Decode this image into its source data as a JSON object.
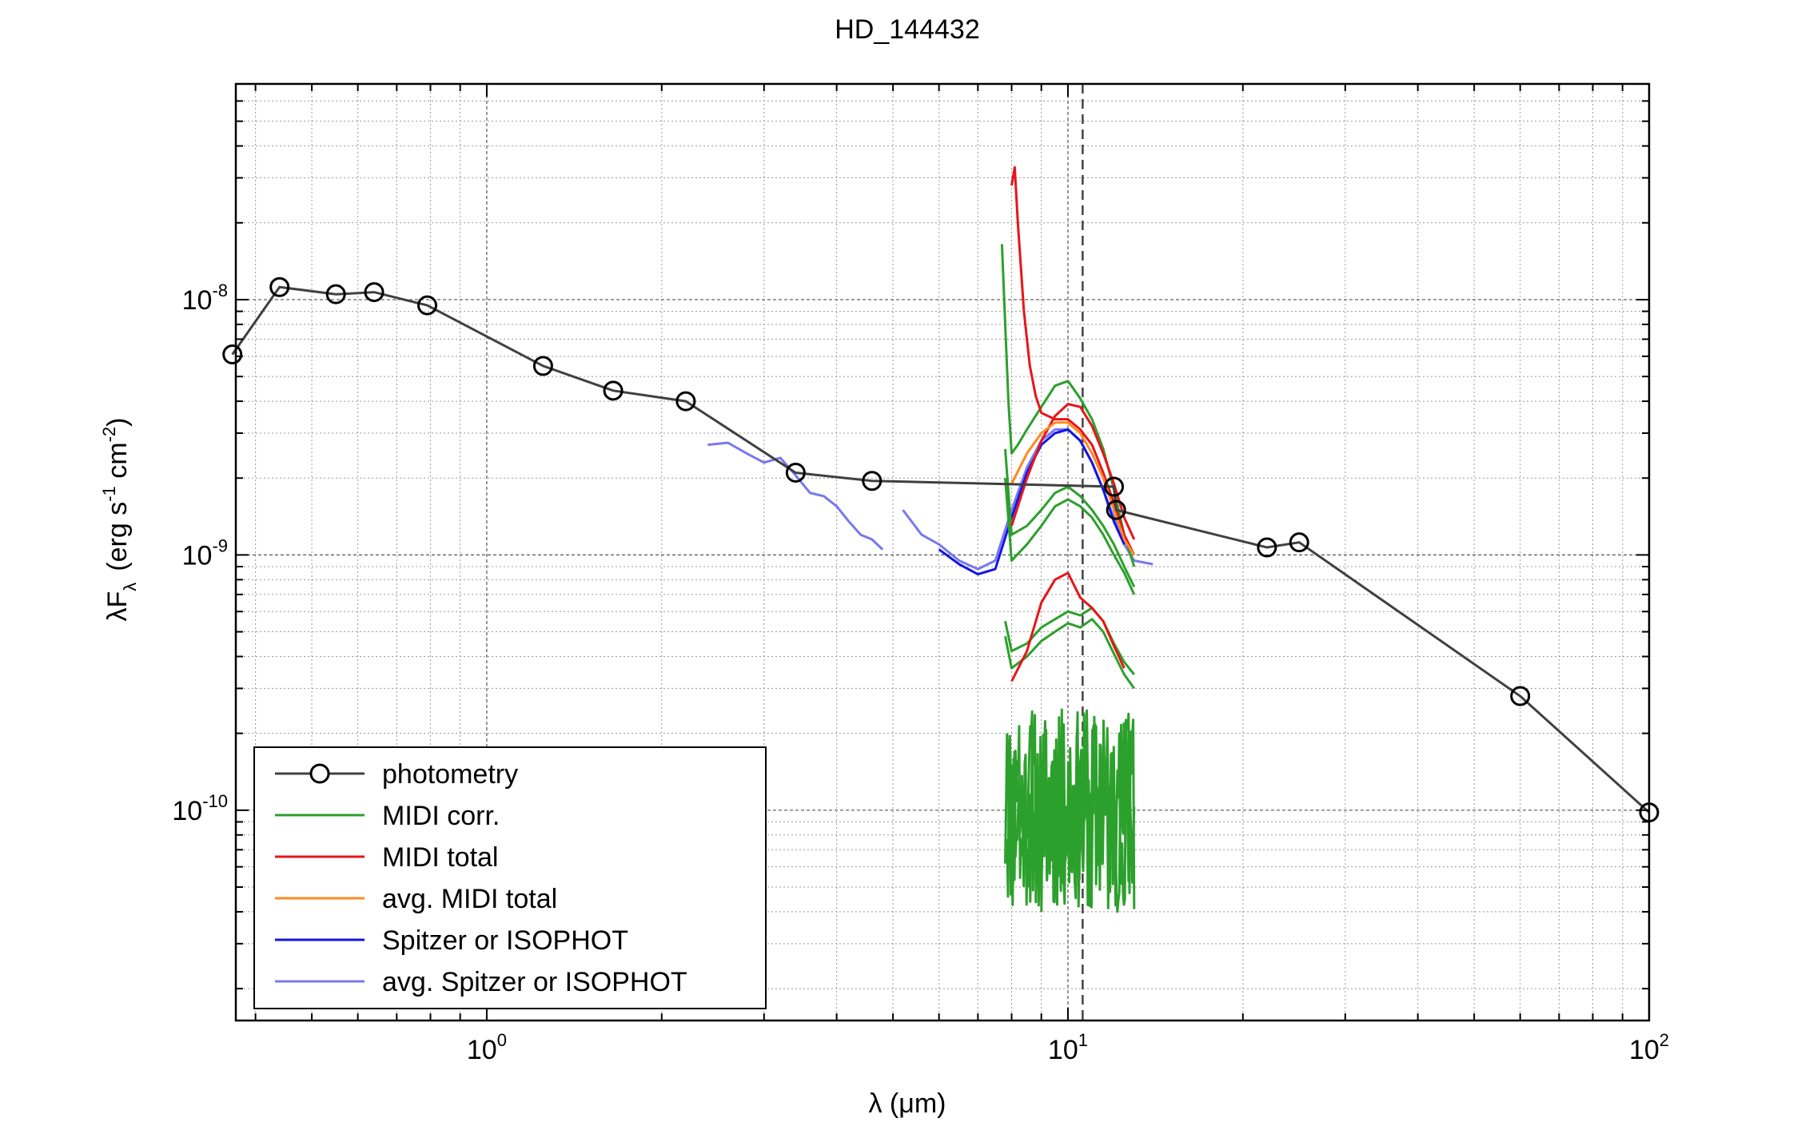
{
  "chart_data": {
    "type": "line",
    "title": "HD_144432",
    "xlabel": "λ (μm)",
    "ylabel_parts": {
      "main": "λF",
      "sub": "λ",
      "units": "(erg s",
      "exp1": "-1",
      "mid": " cm",
      "exp2": "-2",
      "close": ")"
    },
    "xscale": "log",
    "yscale": "log",
    "xlim": [
      0.37,
      100
    ],
    "ylim": [
      1.5e-11,
      7e-08
    ],
    "x_ticks": [
      {
        "value": 1,
        "base": "10",
        "exp": "0"
      },
      {
        "value": 10,
        "base": "10",
        "exp": "1"
      },
      {
        "value": 100,
        "base": "10",
        "exp": "2"
      }
    ],
    "y_ticks": [
      {
        "value": 1e-10,
        "base": "10",
        "exp": "-10"
      },
      {
        "value": 1e-09,
        "base": "10",
        "exp": "-9"
      },
      {
        "value": 1e-08,
        "base": "10",
        "exp": "-8"
      }
    ],
    "grid": true,
    "vline": {
      "x": 10.6,
      "style": "dashed"
    },
    "legend_position": "bottom-left",
    "legend": [
      {
        "label": "photometry",
        "color": "#404040",
        "marker": "circle"
      },
      {
        "label": "MIDI corr.",
        "color": "#2ca02c"
      },
      {
        "label": "MIDI total",
        "color": "#e8141a"
      },
      {
        "label": "avg. MIDI total",
        "color": "#ff8a1f"
      },
      {
        "label": "Spitzer or ISOPHOT",
        "color": "#1414e6"
      },
      {
        "label": "avg. Spitzer or ISOPHOT",
        "color": "#7878f0"
      }
    ],
    "series": [
      {
        "kind": "photometry",
        "color": "#404040",
        "x": [
          0.365,
          0.44,
          0.55,
          0.64,
          0.79,
          1.25,
          1.65,
          2.2,
          3.4,
          4.6,
          12,
          12.1,
          22,
          25,
          60,
          100
        ],
        "y": [
          6.1e-09,
          1.12e-08,
          1.05e-08,
          1.07e-08,
          9.5e-09,
          5.5e-09,
          4.4e-09,
          4e-09,
          2.1e-09,
          1.95e-09,
          1.85e-09,
          1.5e-09,
          1.07e-09,
          1.12e-09,
          2.8e-10,
          9.8e-11
        ]
      },
      {
        "kind": "spectrum",
        "group": "avg. Spitzer or ISOPHOT",
        "color": "#7878f0",
        "x": [
          2.4,
          2.6,
          2.8,
          3.0,
          3.2,
          3.4,
          3.6,
          3.8,
          4.0,
          4.2,
          4.4,
          4.6,
          4.8
        ],
        "y": [
          2.7e-09,
          2.75e-09,
          2.5e-09,
          2.3e-09,
          2.4e-09,
          2.05e-09,
          1.75e-09,
          1.7e-09,
          1.55e-09,
          1.35e-09,
          1.2e-09,
          1.15e-09,
          1.05e-09
        ]
      },
      {
        "kind": "spectrum",
        "group": "avg. Spitzer or ISOPHOT",
        "color": "#7878f0",
        "x": [
          5.2,
          5.6,
          6.0,
          6.5,
          7.0,
          7.5,
          8.0,
          8.5,
          9.0,
          9.5,
          10.0,
          10.5,
          11.0,
          11.5,
          12.0,
          12.5,
          13.0,
          14.0
        ],
        "y": [
          1.5e-09,
          1.2e-09,
          1.1e-09,
          9.5e-10,
          8.8e-10,
          9.5e-10,
          1.5e-09,
          2.2e-09,
          2.8e-09,
          3.1e-09,
          3.1e-09,
          2.8e-09,
          2.3e-09,
          1.8e-09,
          1.4e-09,
          1.1e-09,
          9.5e-10,
          9.2e-10
        ]
      },
      {
        "kind": "spectrum",
        "group": "Spitzer or ISOPHOT",
        "color": "#1414e6",
        "x": [
          6.0,
          6.5,
          7.0,
          7.5,
          8.0,
          8.5,
          9.0,
          9.5,
          10.0,
          10.5,
          11.0,
          11.5,
          12.0,
          12.5
        ],
        "y": [
          1.05e-09,
          9.2e-10,
          8.4e-10,
          8.8e-10,
          1.4e-09,
          2.1e-09,
          2.7e-09,
          3e-09,
          3.1e-09,
          2.8e-09,
          2.3e-09,
          1.8e-09,
          1.35e-09,
          1.1e-09
        ]
      },
      {
        "kind": "spectrum",
        "group": "avg. MIDI total",
        "color": "#ff8a1f",
        "x": [
          8.0,
          8.5,
          9.0,
          9.5,
          10.0,
          10.5,
          11.0,
          11.5,
          12.0,
          12.5,
          13.0
        ],
        "y": [
          1.9e-09,
          2.5e-09,
          3e-09,
          3.3e-09,
          3.3e-09,
          3e-09,
          2.5e-09,
          2e-09,
          1.5e-09,
          1.15e-09,
          1e-09
        ]
      },
      {
        "kind": "spectrum",
        "group": "MIDI total",
        "color": "#e8141a",
        "x": [
          8.0,
          8.1,
          8.2,
          8.4,
          8.6,
          8.8,
          9.0,
          9.5,
          10.0,
          10.5,
          11.0,
          11.5,
          12.0,
          12.5,
          13.0
        ],
        "y": [
          2.8e-08,
          3.3e-08,
          2e-08,
          9e-09,
          5.5e-09,
          4.2e-09,
          3.6e-09,
          3.4e-09,
          3.4e-09,
          3.1e-09,
          2.7e-09,
          2.1e-09,
          1.6e-09,
          1.2e-09,
          1e-09
        ]
      },
      {
        "kind": "spectrum",
        "group": "MIDI total",
        "color": "#e8141a",
        "x": [
          8.0,
          8.5,
          9.0,
          9.5,
          10.0,
          10.5,
          11.0,
          11.5,
          12.0,
          12.5,
          13.0
        ],
        "y": [
          1.3e-09,
          2e-09,
          2.8e-09,
          3.5e-09,
          3.9e-09,
          3.8e-09,
          3.2e-09,
          2.5e-09,
          1.9e-09,
          1.4e-09,
          1.15e-09
        ]
      },
      {
        "kind": "spectrum",
        "group": "MIDI total",
        "color": "#e8141a",
        "x": [
          8.0,
          8.5,
          9.0,
          9.5,
          10.0,
          10.5,
          11.0,
          11.5,
          12.0,
          12.5
        ],
        "y": [
          3.2e-10,
          4.2e-10,
          6.5e-10,
          8e-10,
          8.5e-10,
          6.8e-10,
          6.2e-10,
          5.5e-10,
          4.4e-10,
          3.6e-10
        ]
      },
      {
        "kind": "spectrum",
        "group": "MIDI corr.",
        "color": "#2ca02c",
        "x": [
          7.7,
          7.8,
          7.9,
          8.0,
          8.2,
          8.5,
          9.0,
          9.5,
          10.0,
          10.5,
          11.0,
          11.5,
          12.0,
          12.5,
          13.0
        ],
        "y": [
          1.65e-08,
          8e-09,
          4e-09,
          2.5e-09,
          2.7e-09,
          3.1e-09,
          3.8e-09,
          4.6e-09,
          4.8e-09,
          4.1e-09,
          3.4e-09,
          2.6e-09,
          1.8e-09,
          1.2e-09,
          9e-10
        ]
      },
      {
        "kind": "spectrum",
        "group": "MIDI corr.",
        "color": "#2ca02c",
        "x": [
          7.8,
          8.0,
          8.5,
          9.0,
          9.5,
          10.0,
          10.5,
          11.0,
          11.5,
          12.0,
          12.5,
          13.0
        ],
        "y": [
          2.6e-09,
          1.2e-09,
          1.3e-09,
          1.5e-09,
          1.75e-09,
          1.85e-09,
          1.7e-09,
          1.5e-09,
          1.3e-09,
          1.1e-09,
          9e-10,
          7.5e-10
        ]
      },
      {
        "kind": "spectrum",
        "group": "MIDI corr.",
        "color": "#2ca02c",
        "x": [
          7.8,
          8.0,
          8.5,
          9.0,
          9.5,
          10.0,
          10.5,
          11.0,
          11.5,
          12.0,
          12.5,
          13.0
        ],
        "y": [
          2e-09,
          9.5e-10,
          1.1e-09,
          1.3e-09,
          1.55e-09,
          1.65e-09,
          1.55e-09,
          1.4e-09,
          1.2e-09,
          1e-09,
          8.5e-10,
          7e-10
        ]
      },
      {
        "kind": "spectrum",
        "group": "MIDI corr.",
        "color": "#2ca02c",
        "x": [
          7.8,
          8.0,
          8.5,
          9.0,
          9.5,
          10.0,
          10.5,
          11.0,
          11.5,
          12.0,
          12.5,
          13.0
        ],
        "y": [
          5.5e-10,
          4.2e-10,
          4.5e-10,
          5.2e-10,
          5.6e-10,
          6e-10,
          5.8e-10,
          6.2e-10,
          5.5e-10,
          4.5e-10,
          3.8e-10,
          3.4e-10
        ]
      },
      {
        "kind": "spectrum",
        "group": "MIDI corr.",
        "color": "#2ca02c",
        "x": [
          7.8,
          8.0,
          8.5,
          9.0,
          9.5,
          10.0,
          10.5,
          11.0,
          11.5,
          12.0,
          12.5,
          13.0
        ],
        "y": [
          4.8e-10,
          3.6e-10,
          4e-10,
          4.6e-10,
          5e-10,
          5.4e-10,
          5.2e-10,
          5.6e-10,
          5e-10,
          4.1e-10,
          3.4e-10,
          3e-10
        ]
      },
      {
        "kind": "noisy",
        "group": "MIDI corr.",
        "color": "#2ca02c",
        "seed": 3,
        "x_range": [
          7.8,
          13.0
        ],
        "n": 140,
        "y_low": 4e-11,
        "y_high": 2.5e-10
      },
      {
        "kind": "noisy",
        "group": "MIDI corr.",
        "color": "#2ca02c",
        "seed": 11,
        "x_range": [
          7.8,
          13.0
        ],
        "n": 140,
        "y_low": 4e-11,
        "y_high": 2.5e-10
      }
    ]
  }
}
